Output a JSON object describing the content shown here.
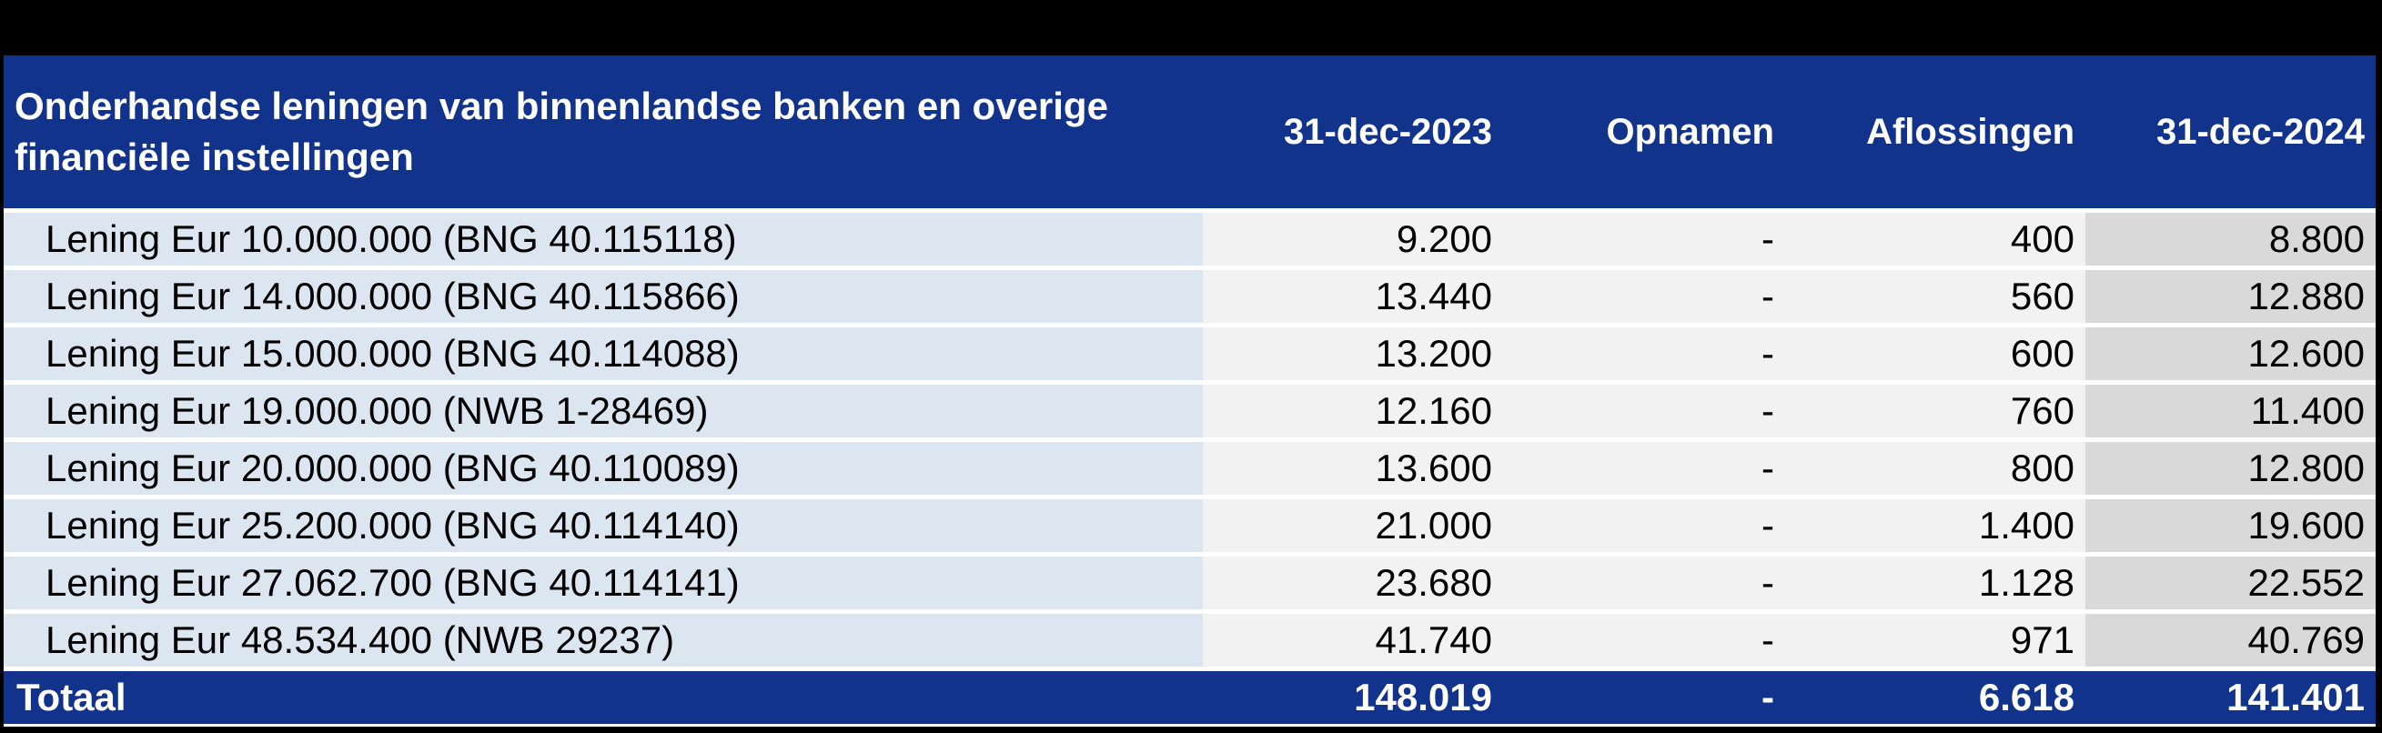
{
  "table": {
    "title_line1": "Onderhandse leningen van binnenlandse banken en overige",
    "title_line2": "financiële instellingen",
    "columns": {
      "c1": "31-dec-2023",
      "c2": "Opnamen",
      "c3": "Aflossingen",
      "c4": "31-dec-2024"
    },
    "rows": [
      {
        "label": "Lening Eur 10.000.000 (BNG 40.115118)",
        "dec2023": "9.200",
        "opnamen": "-",
        "aflossingen": "400",
        "dec2024": "8.800"
      },
      {
        "label": "Lening Eur 14.000.000 (BNG 40.115866)",
        "dec2023": "13.440",
        "opnamen": "-",
        "aflossingen": "560",
        "dec2024": "12.880"
      },
      {
        "label": "Lening Eur 15.000.000 (BNG 40.114088)",
        "dec2023": "13.200",
        "opnamen": "-",
        "aflossingen": "600",
        "dec2024": "12.600"
      },
      {
        "label": "Lening Eur 19.000.000 (NWB 1-28469)",
        "dec2023": "12.160",
        "opnamen": "-",
        "aflossingen": "760",
        "dec2024": "11.400"
      },
      {
        "label": "Lening Eur 20.000.000 (BNG 40.110089)",
        "dec2023": "13.600",
        "opnamen": "-",
        "aflossingen": "800",
        "dec2024": "12.800"
      },
      {
        "label": "Lening Eur 25.200.000 (BNG 40.114140)",
        "dec2023": "21.000",
        "opnamen": "-",
        "aflossingen": "1.400",
        "dec2024": "19.600"
      },
      {
        "label": "Lening Eur 27.062.700 (BNG 40.114141)",
        "dec2023": "23.680",
        "opnamen": "-",
        "aflossingen": "1.128",
        "dec2024": "22.552"
      },
      {
        "label": "Lening Eur 48.534.400 (NWB 29237)",
        "dec2023": "41.740",
        "opnamen": "-",
        "aflossingen": "971",
        "dec2024": "40.769"
      }
    ],
    "total": {
      "label": "Totaal",
      "dec2023": "148.019",
      "opnamen": "-",
      "aflossingen": "6.618",
      "dec2024": "141.401"
    }
  },
  "colors": {
    "header_background": "#11338B",
    "description_column_background": "#DCE6F1",
    "numeric_column_background": "#F2F2F2",
    "last_column_background": "#D9D9D9",
    "separator": "#FFFFFF",
    "outer_border": "#000000",
    "header_text": "#FFFFFF",
    "body_text": "#000000"
  }
}
